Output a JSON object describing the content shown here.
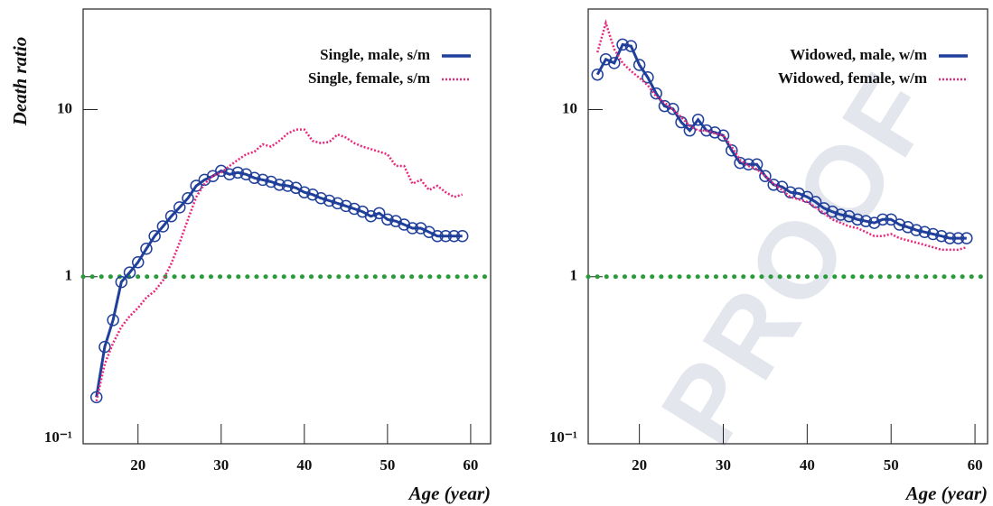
{
  "chart_data": [
    {
      "type": "line",
      "y_label": "Death ratio",
      "x_label": "Age (year)",
      "log_y": true,
      "legend": "top right",
      "xlim": [
        13.4,
        62.4
      ],
      "xticks": [
        20,
        30,
        40,
        50,
        60
      ],
      "ylim": [
        0.1,
        40
      ],
      "yticks": [
        {
          "value": 0.1,
          "label": "10⁻¹"
        },
        1,
        10
      ],
      "hline": {
        "value": 1,
        "color": "#2a9a3a"
      },
      "x": [
        15,
        16,
        17,
        18,
        19,
        20,
        21,
        22,
        23,
        24,
        25,
        26,
        27,
        28,
        29,
        30,
        31,
        32,
        33,
        34,
        35,
        36,
        37,
        38,
        39,
        40,
        41,
        42,
        43,
        44,
        45,
        46,
        47,
        48,
        49,
        50,
        51,
        52,
        53,
        54,
        55,
        56,
        57,
        58,
        59
      ],
      "series": [
        {
          "name": "Single, male, s/m",
          "color": "#1f3f9a",
          "line_style": "solid",
          "markers": "circle",
          "values": [
            0.19,
            0.38,
            0.55,
            0.93,
            1.06,
            1.22,
            1.47,
            1.75,
            2.0,
            2.3,
            2.6,
            2.95,
            3.5,
            3.8,
            4.0,
            4.3,
            4.1,
            4.2,
            4.1,
            3.9,
            3.8,
            3.7,
            3.55,
            3.5,
            3.4,
            3.2,
            3.1,
            2.95,
            2.85,
            2.75,
            2.65,
            2.55,
            2.45,
            2.3,
            2.4,
            2.2,
            2.15,
            2.05,
            1.95,
            1.95,
            1.85,
            1.75,
            1.75,
            1.75,
            1.75
          ]
        },
        {
          "name": "Single, female, s/m",
          "color": "#e8287a",
          "line_style": "dotted",
          "values": [
            0.18,
            0.3,
            0.4,
            0.5,
            0.58,
            0.65,
            0.75,
            0.82,
            0.95,
            1.2,
            1.6,
            2.2,
            3.0,
            3.6,
            4.0,
            4.2,
            4.6,
            5.0,
            5.4,
            5.6,
            6.2,
            6.0,
            6.5,
            7.2,
            7.6,
            7.6,
            6.5,
            6.3,
            6.4,
            7.1,
            6.8,
            6.3,
            6.0,
            5.8,
            5.6,
            5.4,
            4.6,
            4.6,
            3.6,
            3.8,
            3.3,
            3.5,
            3.2,
            3.0,
            3.1
          ]
        }
      ]
    },
    {
      "type": "line",
      "x_label": "Age (year)",
      "log_y": true,
      "legend": "top right",
      "watermark": "PROOF",
      "xlim": [
        13.9,
        61.5
      ],
      "xticks": [
        20,
        30,
        40,
        50,
        60
      ],
      "ylim": [
        0.1,
        40
      ],
      "yticks": [
        {
          "value": 0.1,
          "label": "10⁻¹"
        },
        1,
        10
      ],
      "hline": {
        "value": 1,
        "color": "#2a9a3a"
      },
      "x": [
        15,
        16,
        17,
        18,
        19,
        20,
        21,
        22,
        23,
        24,
        25,
        26,
        27,
        28,
        29,
        30,
        31,
        32,
        33,
        34,
        35,
        36,
        37,
        38,
        39,
        40,
        41,
        42,
        43,
        44,
        45,
        46,
        47,
        48,
        49,
        50,
        51,
        52,
        53,
        54,
        55,
        56,
        57,
        58,
        59
      ],
      "series": [
        {
          "name": "Widowed, male, w/m",
          "color": "#1f3f9a",
          "line_style": "solid",
          "markers": "circle",
          "values": [
            16.2,
            20,
            19,
            24.5,
            24,
            18.5,
            15.6,
            12.5,
            10.5,
            10.1,
            8.4,
            7.5,
            8.7,
            7.5,
            7.3,
            7.0,
            5.7,
            4.8,
            4.7,
            4.7,
            4.0,
            3.55,
            3.45,
            3.2,
            3.15,
            3.0,
            2.8,
            2.57,
            2.45,
            2.35,
            2.3,
            2.2,
            2.15,
            2.1,
            2.2,
            2.2,
            2.05,
            1.98,
            1.9,
            1.85,
            1.8,
            1.75,
            1.7,
            1.7,
            1.7
          ]
        },
        {
          "name": "Widowed, female, w/m",
          "color": "#e8287a",
          "line_style": "dotted",
          "values": [
            22,
            33,
            23,
            19,
            17,
            15.5,
            14,
            12,
            11,
            10,
            9,
            8,
            7.5,
            7.5,
            7.2,
            7.0,
            6.0,
            5.0,
            4.6,
            4.4,
            4.0,
            3.6,
            3.3,
            3.0,
            2.9,
            2.8,
            2.6,
            2.4,
            2.2,
            2.1,
            2.0,
            1.95,
            1.85,
            1.75,
            1.75,
            1.8,
            1.7,
            1.65,
            1.6,
            1.55,
            1.5,
            1.45,
            1.45,
            1.45,
            1.5
          ]
        }
      ]
    }
  ]
}
